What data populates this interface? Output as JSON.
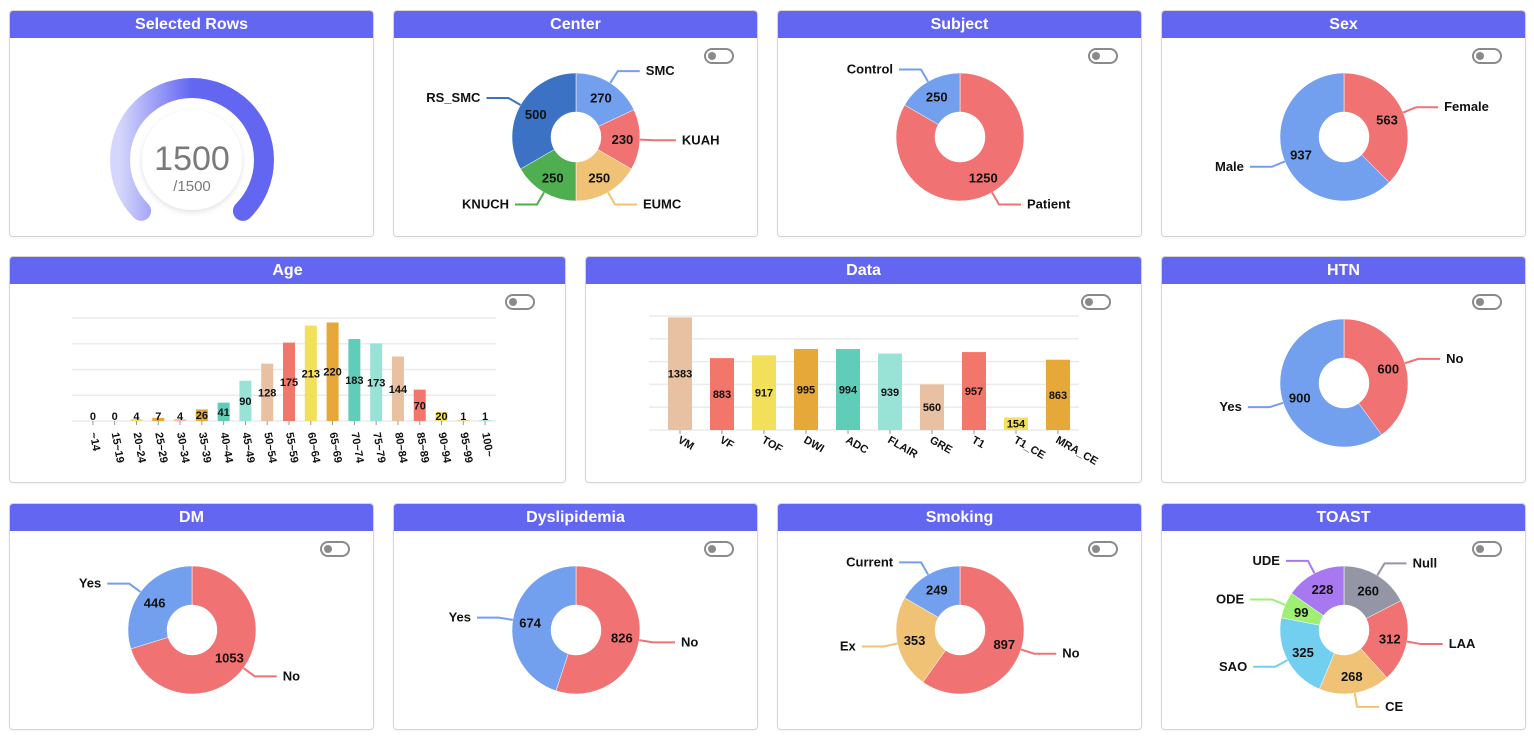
{
  "colors": {
    "header": "#6366f1",
    "gauge_light": "#d4d6fb",
    "gauge_dark": "#6366f1"
  },
  "cards": {
    "selected_rows": {
      "title": "Selected Rows",
      "value": "1500",
      "total_label": "/1500",
      "fraction": 1.0
    },
    "center": {
      "title": "Center"
    },
    "subject": {
      "title": "Subject"
    },
    "sex": {
      "title": "Sex"
    },
    "age": {
      "title": "Age"
    },
    "data": {
      "title": "Data"
    },
    "htn": {
      "title": "HTN"
    },
    "dm": {
      "title": "DM"
    },
    "dyslipidemia": {
      "title": "Dyslipidemia"
    },
    "smoking": {
      "title": "Smoking"
    },
    "toast": {
      "title": "TOAST"
    }
  },
  "chart_data": [
    {
      "id": "center",
      "type": "pie",
      "title": "Center",
      "slices": [
        {
          "label": "SMC",
          "value": 270,
          "color": "#73a0ee"
        },
        {
          "label": "KUAH",
          "value": 230,
          "color": "#f07272"
        },
        {
          "label": "EUMC",
          "value": 250,
          "color": "#f0c276"
        },
        {
          "label": "KNUCH",
          "value": 250,
          "color": "#4eae50"
        },
        {
          "label": "RS_SMC",
          "value": 500,
          "color": "#3b72c4"
        }
      ]
    },
    {
      "id": "subject",
      "type": "pie",
      "title": "Subject",
      "slices": [
        {
          "label": "Patient",
          "value": 1250,
          "color": "#f07272"
        },
        {
          "label": "Control",
          "value": 250,
          "color": "#73a0ee"
        }
      ]
    },
    {
      "id": "sex",
      "type": "pie",
      "title": "Sex",
      "slices": [
        {
          "label": "Female",
          "value": 563,
          "color": "#f07272"
        },
        {
          "label": "Male",
          "value": 937,
          "color": "#73a0ee"
        }
      ]
    },
    {
      "id": "age",
      "type": "bar",
      "title": "Age",
      "categories": [
        "~14",
        "15~19",
        "20~24",
        "25~29",
        "30~34",
        "35~39",
        "40~44",
        "45~49",
        "50~54",
        "55~59",
        "60~64",
        "65~69",
        "70~74",
        "75~79",
        "80~84",
        "85~89",
        "90~94",
        "95~99",
        "100~"
      ],
      "values": [
        0,
        0,
        4,
        7,
        4,
        26,
        41,
        90,
        128,
        175,
        213,
        220,
        183,
        173,
        144,
        70,
        20,
        1,
        1
      ],
      "colors": [
        "#e8c0a2",
        "#f3766a",
        "#f2e05a",
        "#e6a839",
        "#f4b8b0",
        "#e6a839",
        "#60cdb8",
        "#98e3d6",
        "#e8c0a2",
        "#f3766a",
        "#f2e05a",
        "#e6a839",
        "#60cdb8",
        "#98e3d6",
        "#e8c0a2",
        "#f3766a",
        "#f2e05a",
        "#e6a839",
        "#60cdb8"
      ],
      "ylim": [
        0,
        230
      ],
      "grid": true
    },
    {
      "id": "data",
      "type": "bar",
      "title": "Data",
      "categories": [
        "VM",
        "VF",
        "TOF",
        "DWI",
        "ADC",
        "FLAIR",
        "GRE",
        "T1",
        "T1_CE",
        "MRA_CE"
      ],
      "values": [
        1383,
        883,
        917,
        995,
        994,
        939,
        560,
        957,
        154,
        863
      ],
      "colors": [
        "#e8c0a2",
        "#f3766a",
        "#f2e05a",
        "#e6a839",
        "#60cdb8",
        "#98e3d6",
        "#e8c0a2",
        "#f3766a",
        "#f2e05a",
        "#e6a839"
      ],
      "ylim": [
        0,
        1400
      ],
      "grid": true
    },
    {
      "id": "htn",
      "type": "pie",
      "title": "HTN",
      "slices": [
        {
          "label": "No",
          "value": 600,
          "color": "#f07272"
        },
        {
          "label": "Yes",
          "value": 900,
          "color": "#73a0ee"
        }
      ]
    },
    {
      "id": "dm",
      "type": "pie",
      "title": "DM",
      "slices": [
        {
          "label": "No",
          "value": 1053,
          "color": "#f07272"
        },
        {
          "label": "Yes",
          "value": 446,
          "color": "#73a0ee"
        }
      ]
    },
    {
      "id": "dyslipidemia",
      "type": "pie",
      "title": "Dyslipidemia",
      "slices": [
        {
          "label": "No",
          "value": 826,
          "color": "#f07272"
        },
        {
          "label": "Yes",
          "value": 674,
          "color": "#73a0ee"
        }
      ]
    },
    {
      "id": "smoking",
      "type": "pie",
      "title": "Smoking",
      "slices": [
        {
          "label": "No",
          "value": 897,
          "color": "#f07272"
        },
        {
          "label": "Ex",
          "value": 353,
          "color": "#f0c276"
        },
        {
          "label": "Current",
          "value": 249,
          "color": "#73a0ee"
        }
      ]
    },
    {
      "id": "toast",
      "type": "pie",
      "title": "TOAST",
      "slices": [
        {
          "label": "Null",
          "value": 260,
          "color": "#9496a6"
        },
        {
          "label": "LAA",
          "value": 312,
          "color": "#f07272"
        },
        {
          "label": "CE",
          "value": 268,
          "color": "#f0c276"
        },
        {
          "label": "SAO",
          "value": 325,
          "color": "#73cff0"
        },
        {
          "label": "ODE",
          "value": 99,
          "color": "#9fef72"
        },
        {
          "label": "UDE",
          "value": 228,
          "color": "#a778f0"
        }
      ]
    }
  ]
}
